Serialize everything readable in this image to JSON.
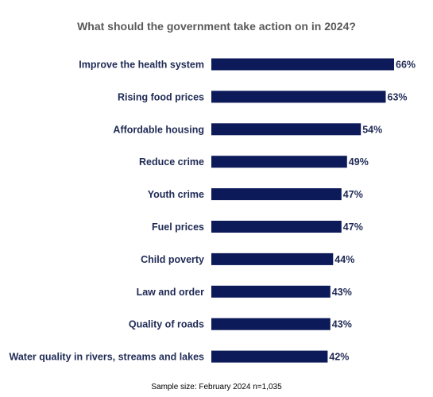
{
  "chart_data": {
    "type": "bar",
    "orientation": "horizontal",
    "title": "What should the government take action on in 2024?",
    "categories": [
      "Improve the health system",
      "Rising food prices",
      "Affordable housing",
      "Reduce crime",
      "Youth crime",
      "Fuel prices",
      "Child poverty",
      "Law and order",
      "Quality of roads",
      "Water quality in rivers, streams and lakes"
    ],
    "values": [
      66,
      63,
      54,
      49,
      47,
      47,
      44,
      43,
      43,
      42
    ],
    "data_labels": [
      "66%",
      "63%",
      "54%",
      "49%",
      "47%",
      "47%",
      "44%",
      "43%",
      "43%",
      "42%"
    ],
    "unit": "%",
    "xlim": [
      0,
      66
    ],
    "grid": false,
    "legend": "none",
    "footnote": "Sample size: February 2024 n=1,035",
    "bar_color": "#0d1a5a",
    "label_color": "#1f2a55",
    "title_color": "#595959"
  }
}
